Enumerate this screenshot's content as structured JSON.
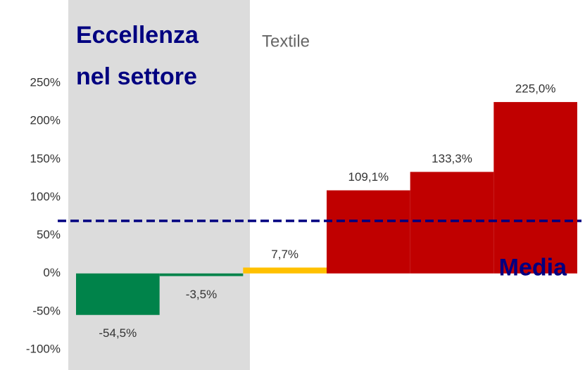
{
  "chart_data": {
    "type": "bar",
    "title": "Textile",
    "annotation": [
      "Eccellenza",
      "nel settore"
    ],
    "categories": [
      null,
      null,
      null,
      null,
      null,
      null
    ],
    "values": [
      -54.5,
      -3.5,
      7.7,
      109.1,
      133.3,
      225.0
    ],
    "value_labels": [
      "-54,5%",
      "-3,5%",
      "7,7%",
      "109,1%",
      "133,3%",
      "225,0%"
    ],
    "colors": [
      "#00834a",
      "#00834a",
      "#ffc000",
      "#c00000",
      "#c00000",
      "#c00000"
    ],
    "ylim": [
      -100,
      250
    ],
    "yticks": [
      {
        "value": -100,
        "label": "-100%"
      },
      {
        "value": -50,
        "label": "-50%"
      },
      {
        "value": 0,
        "label": "0%"
      },
      {
        "value": 50,
        "label": "50%"
      },
      {
        "value": 100,
        "label": "100%"
      },
      {
        "value": 150,
        "label": "150%"
      },
      {
        "value": 200,
        "label": "200%"
      },
      {
        "value": 250,
        "label": "250%"
      }
    ],
    "reference_line": {
      "value": 69,
      "label": "Media",
      "color": "#000080"
    },
    "grid": false
  }
}
